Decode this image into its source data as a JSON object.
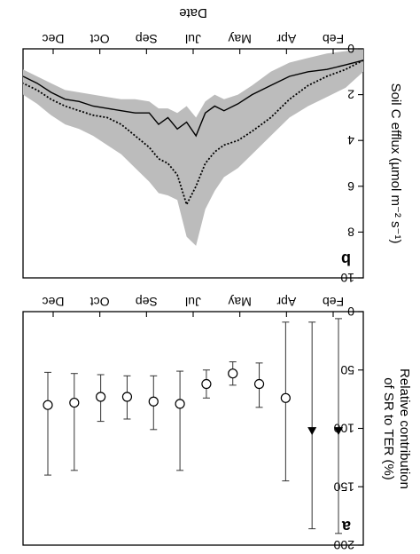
{
  "chart_data": [
    {
      "panel": "a",
      "type": "scatter",
      "ylabel_line1": "Relative contribution",
      "ylabel_line2": "of SR to TER (%)",
      "ylim": [
        0,
        200
      ],
      "yticks": [
        "0",
        "50",
        "100",
        "150",
        "200"
      ],
      "month_labels": [
        "Feb",
        "Apr",
        "May",
        "Jul",
        "Sep",
        "Oct",
        "Dec"
      ],
      "points": [
        {
          "x": 0,
          "y": 102,
          "low": 6,
          "high": 190,
          "marker": "filled-triangle"
        },
        {
          "x": 1,
          "y": 102,
          "low": 9,
          "high": 186,
          "marker": "filled-triangle"
        },
        {
          "x": 2,
          "y": 74,
          "low": 9,
          "high": 145,
          "marker": "open-circle"
        },
        {
          "x": 3,
          "y": 62,
          "low": 44,
          "high": 82,
          "marker": "open-circle"
        },
        {
          "x": 4,
          "y": 53,
          "low": 43,
          "high": 63,
          "marker": "open-circle"
        },
        {
          "x": 5,
          "y": 62,
          "low": 50,
          "high": 74,
          "marker": "open-circle"
        },
        {
          "x": 6,
          "y": 79,
          "low": 51,
          "high": 136,
          "marker": "open-circle"
        },
        {
          "x": 7,
          "y": 77,
          "low": 55,
          "high": 101,
          "marker": "open-circle"
        },
        {
          "x": 8,
          "y": 73,
          "low": 55,
          "high": 92,
          "marker": "open-circle"
        },
        {
          "x": 9,
          "y": 73,
          "low": 54,
          "high": 94,
          "marker": "open-circle"
        },
        {
          "x": 10,
          "y": 78,
          "low": 53,
          "high": 136,
          "marker": "open-circle"
        },
        {
          "x": 11,
          "y": 80,
          "low": 52,
          "high": 140,
          "marker": "open-circle"
        }
      ]
    },
    {
      "panel": "b",
      "type": "line",
      "xlabel": "Date",
      "ylabel": "Soil C efflux (µmol m⁻² s⁻¹)",
      "ylim": [
        0,
        10
      ],
      "yticks": [
        "0",
        "2",
        "4",
        "6",
        "8",
        "10"
      ],
      "month_labels": [
        "Feb",
        "Apr",
        "May",
        "Jul",
        "Sep",
        "Oct",
        "Dec"
      ],
      "day_of_year": [
        1,
        20,
        40,
        60,
        80,
        100,
        120,
        135,
        150,
        160,
        170,
        180,
        190,
        200,
        210,
        220,
        230,
        245,
        260,
        275,
        290,
        305,
        320,
        335,
        350,
        365
      ],
      "series": [
        {
          "style": "solid",
          "values": [
            0.5,
            0.7,
            0.9,
            1.0,
            1.2,
            1.6,
            2.0,
            2.4,
            2.7,
            2.5,
            2.8,
            3.8,
            3.2,
            3.5,
            3.0,
            3.3,
            2.8,
            2.8,
            2.7,
            2.6,
            2.5,
            2.3,
            2.2,
            1.9,
            1.5,
            1.2
          ]
        },
        {
          "style": "dotted",
          "values": [
            0.5,
            0.9,
            1.2,
            1.6,
            2.2,
            3.0,
            3.6,
            4.0,
            4.2,
            4.5,
            5.0,
            6.0,
            6.8,
            5.5,
            5.0,
            4.8,
            4.3,
            3.8,
            3.3,
            3.0,
            2.9,
            2.7,
            2.5,
            2.2,
            1.8,
            1.5
          ]
        }
      ],
      "band_lower": [
        0.0,
        0.1,
        0.2,
        0.4,
        0.6,
        1.0,
        1.6,
        2.0,
        2.2,
        2.0,
        2.3,
        3.0,
        2.5,
        2.8,
        2.6,
        2.6,
        2.3,
        2.2,
        2.2,
        2.1,
        2.0,
        1.9,
        1.8,
        1.5,
        1.2,
        0.9
      ],
      "band_upper": [
        1.0,
        1.7,
        2.1,
        2.5,
        3.0,
        3.8,
        4.6,
        5.2,
        5.6,
        6.2,
        7.0,
        8.6,
        8.2,
        6.6,
        6.4,
        6.3,
        5.8,
        5.2,
        4.6,
        4.2,
        3.8,
        3.5,
        3.3,
        2.9,
        2.4,
        2.0
      ]
    }
  ]
}
